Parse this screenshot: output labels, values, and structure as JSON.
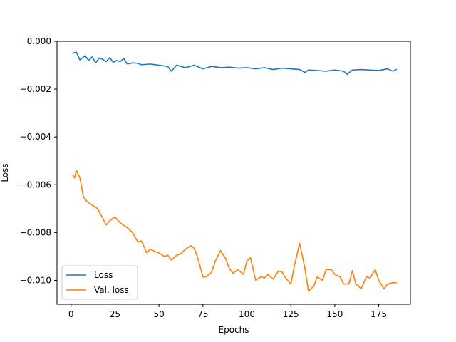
{
  "chart_data": {
    "type": "line",
    "title": "",
    "xlabel": "Epochs",
    "ylabel": "Loss",
    "xlim": [
      -8,
      193
    ],
    "ylim": [
      -0.011,
      0.0
    ],
    "xticks": [
      0,
      25,
      50,
      75,
      100,
      125,
      150,
      175
    ],
    "xtick_labels": [
      "0",
      "25",
      "50",
      "75",
      "100",
      "125",
      "150",
      "175"
    ],
    "yticks": [
      0.0,
      -0.002,
      -0.004,
      -0.006,
      -0.008,
      -0.01
    ],
    "ytick_labels": [
      "0.000",
      "−0.002",
      "−0.004",
      "−0.006",
      "−0.008",
      "−0.010"
    ],
    "grid": false,
    "legend": {
      "position": "lower-left"
    },
    "series": [
      {
        "name": "Loss",
        "color": "#1f77b4",
        "x": [
          1,
          3,
          5,
          8,
          10,
          12,
          14,
          16,
          18,
          20,
          22,
          24,
          26,
          28,
          30,
          32,
          35,
          38,
          40,
          45,
          50,
          55,
          57,
          60,
          65,
          70,
          75,
          80,
          85,
          90,
          95,
          100,
          105,
          110,
          115,
          120,
          125,
          130,
          133,
          135,
          140,
          145,
          150,
          155,
          157,
          160,
          165,
          170,
          175,
          180,
          183,
          185
        ],
        "y": [
          -0.0005,
          -0.00045,
          -0.00078,
          -0.0006,
          -0.0008,
          -0.00065,
          -0.0009,
          -0.0007,
          -0.00075,
          -0.00085,
          -0.00068,
          -0.00088,
          -0.0008,
          -0.00085,
          -0.00072,
          -0.00095,
          -0.0009,
          -0.00092,
          -0.00098,
          -0.00095,
          -0.001,
          -0.00105,
          -0.00125,
          -0.001,
          -0.0011,
          -0.001,
          -0.00115,
          -0.00105,
          -0.0011,
          -0.00108,
          -0.00112,
          -0.0011,
          -0.00115,
          -0.0011,
          -0.00118,
          -0.00112,
          -0.00115,
          -0.00118,
          -0.0013,
          -0.0012,
          -0.00122,
          -0.00125,
          -0.0012,
          -0.00125,
          -0.00138,
          -0.0012,
          -0.00118,
          -0.0012,
          -0.00122,
          -0.00115,
          -0.00125,
          -0.00118
        ]
      },
      {
        "name": "Val. loss",
        "color": "#ff7f0e",
        "x": [
          1,
          2,
          3,
          5,
          7,
          9,
          12,
          15,
          18,
          20,
          22,
          25,
          28,
          32,
          35,
          38,
          40,
          43,
          45,
          48,
          50,
          53,
          55,
          57,
          60,
          62,
          65,
          68,
          70,
          72,
          75,
          77,
          80,
          82,
          85,
          88,
          90,
          92,
          95,
          98,
          100,
          102,
          105,
          108,
          110,
          112,
          115,
          118,
          120,
          122,
          125,
          127,
          130,
          133,
          135,
          138,
          140,
          143,
          145,
          148,
          150,
          153,
          155,
          158,
          160,
          162,
          165,
          168,
          170,
          173,
          175,
          178,
          180,
          183,
          185
        ],
        "y": [
          -0.0056,
          -0.00572,
          -0.0054,
          -0.0057,
          -0.0065,
          -0.0067,
          -0.00685,
          -0.007,
          -0.0074,
          -0.00768,
          -0.0075,
          -0.00735,
          -0.0076,
          -0.0078,
          -0.008,
          -0.0084,
          -0.00835,
          -0.00885,
          -0.0087,
          -0.0088,
          -0.00885,
          -0.009,
          -0.00895,
          -0.00915,
          -0.00895,
          -0.0089,
          -0.0087,
          -0.00855,
          -0.00865,
          -0.00905,
          -0.00985,
          -0.00985,
          -0.00965,
          -0.0092,
          -0.00875,
          -0.0091,
          -0.0095,
          -0.0097,
          -0.00955,
          -0.00975,
          -0.0092,
          -0.00905,
          -0.01,
          -0.00985,
          -0.0099,
          -0.00975,
          -0.00995,
          -0.0096,
          -0.00965,
          -0.0099,
          -0.01015,
          -0.0094,
          -0.00845,
          -0.0095,
          -0.01045,
          -0.01025,
          -0.00985,
          -0.01,
          -0.00955,
          -0.00955,
          -0.00975,
          -0.00985,
          -0.01015,
          -0.01015,
          -0.0096,
          -0.01015,
          -0.01035,
          -0.00985,
          -0.0099,
          -0.00955,
          -0.01,
          -0.01035,
          -0.01015,
          -0.0101,
          -0.0101
        ]
      }
    ]
  }
}
